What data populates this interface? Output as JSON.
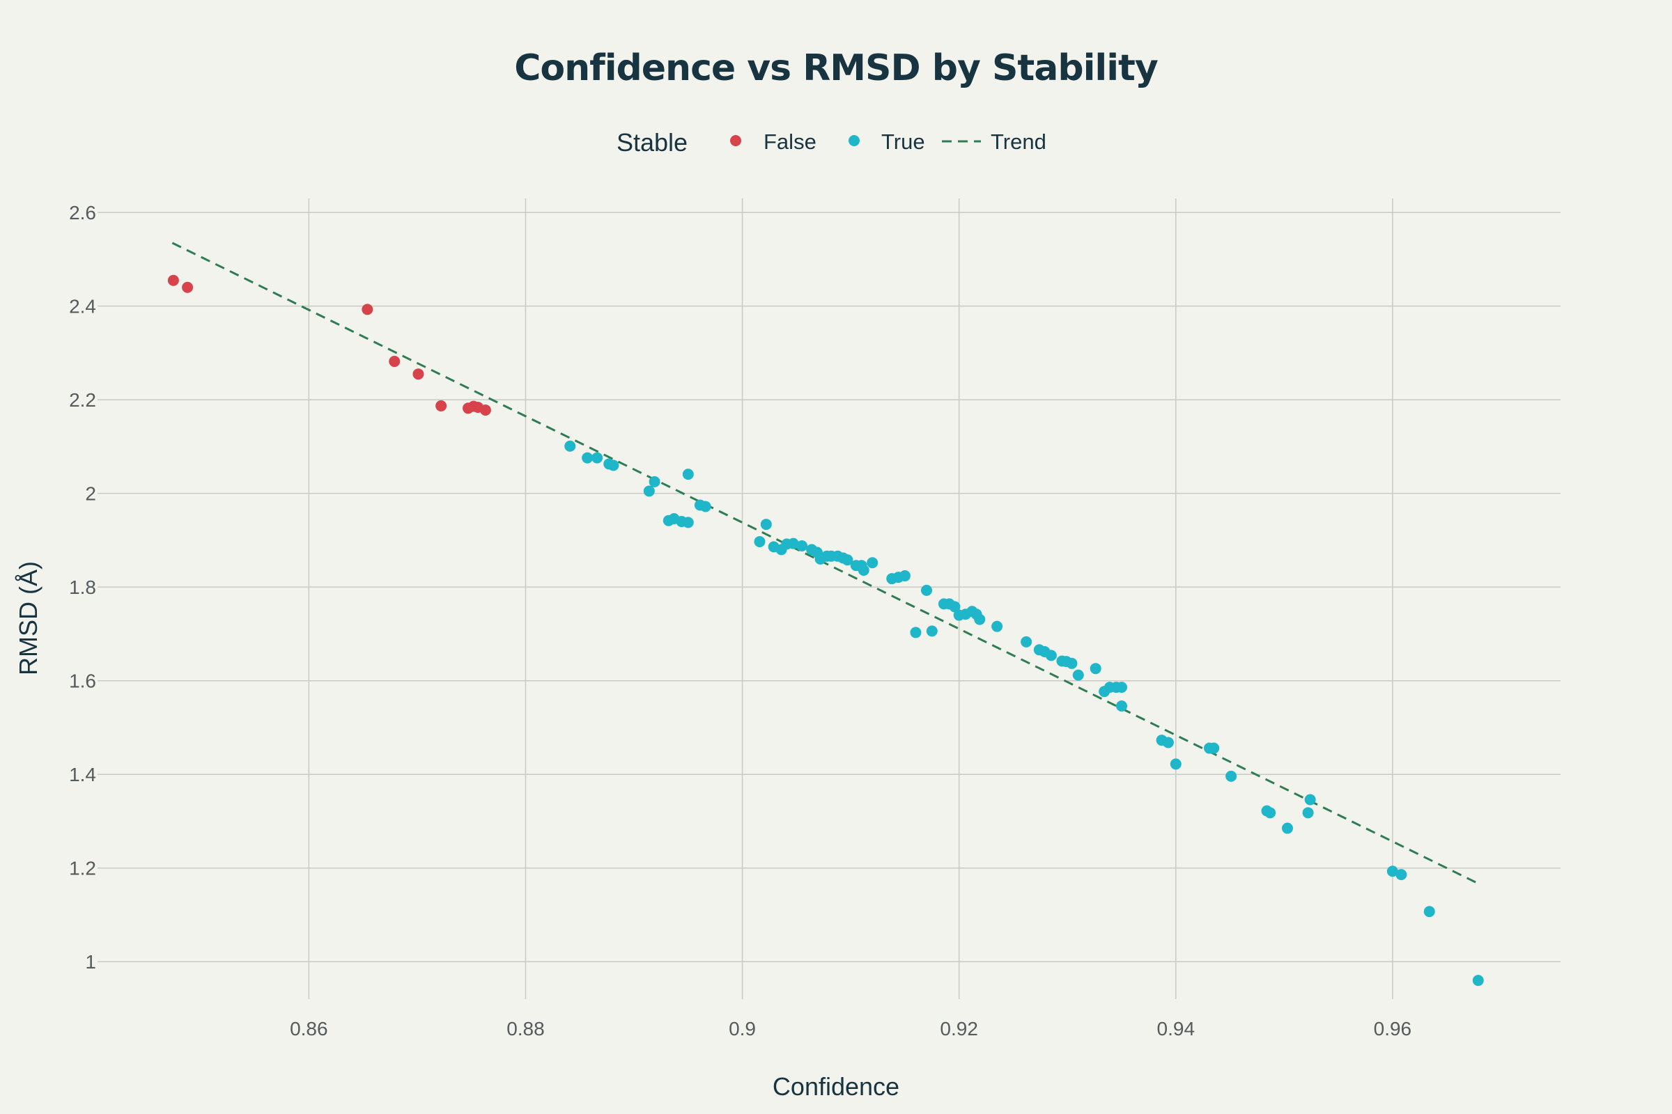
{
  "chart_data": {
    "type": "scatter",
    "title": "Confidence vs RMSD by Stability",
    "xlabel": "Confidence",
    "ylabel": "RMSD (Å)",
    "xlim": [
      0.8405,
      0.9755
    ],
    "ylim": [
      0.92,
      2.63
    ],
    "grid": true,
    "legend_position": "top-center",
    "legend_title": "Stable",
    "x_ticks": [
      "0.86",
      "0.88",
      "0.9",
      "0.92",
      "0.94",
      "0.96"
    ],
    "y_ticks": [
      "1",
      "1.2",
      "1.4",
      "1.6",
      "1.8",
      "2",
      "2.2",
      "2.4",
      "2.6"
    ],
    "x_tick_values": [
      0.86,
      0.88,
      0.9,
      0.92,
      0.94,
      0.96
    ],
    "y_tick_values": [
      1.0,
      1.2,
      1.4,
      1.6,
      1.8,
      2.0,
      2.2,
      2.4,
      2.6
    ],
    "colors": {
      "false": "#d6434b",
      "true": "#1fb6c9",
      "trend": "#2e7d52"
    },
    "series": [
      {
        "name": "False",
        "points": [
          [
            0.8475,
            2.455
          ],
          [
            0.8488,
            2.44
          ],
          [
            0.8654,
            2.393
          ],
          [
            0.8679,
            2.282
          ],
          [
            0.8701,
            2.255
          ],
          [
            0.8722,
            2.187
          ],
          [
            0.8747,
            2.182
          ],
          [
            0.8752,
            2.186
          ],
          [
            0.8756,
            2.184
          ],
          [
            0.8763,
            2.178
          ]
        ]
      },
      {
        "name": "True",
        "points": [
          [
            0.8841,
            2.101
          ],
          [
            0.8857,
            2.076
          ],
          [
            0.8866,
            2.076
          ],
          [
            0.8877,
            2.063
          ],
          [
            0.8881,
            2.06
          ],
          [
            0.8914,
            2.005
          ],
          [
            0.8919,
            2.025
          ],
          [
            0.895,
            2.041
          ],
          [
            0.8932,
            1.942
          ],
          [
            0.8937,
            1.946
          ],
          [
            0.8944,
            1.94
          ],
          [
            0.895,
            1.938
          ],
          [
            0.8961,
            1.975
          ],
          [
            0.8966,
            1.972
          ],
          [
            0.9016,
            1.897
          ],
          [
            0.9022,
            1.934
          ],
          [
            0.9029,
            1.886
          ],
          [
            0.9036,
            1.88
          ],
          [
            0.9041,
            1.892
          ],
          [
            0.9047,
            1.893
          ],
          [
            0.9055,
            1.888
          ],
          [
            0.9064,
            1.88
          ],
          [
            0.9069,
            1.874
          ],
          [
            0.9072,
            1.86
          ],
          [
            0.9078,
            1.866
          ],
          [
            0.9082,
            1.866
          ],
          [
            0.9088,
            1.866
          ],
          [
            0.9093,
            1.862
          ],
          [
            0.9097,
            1.858
          ],
          [
            0.9105,
            1.846
          ],
          [
            0.911,
            1.846
          ],
          [
            0.9112,
            1.836
          ],
          [
            0.912,
            1.852
          ],
          [
            0.9138,
            1.818
          ],
          [
            0.9144,
            1.821
          ],
          [
            0.915,
            1.824
          ],
          [
            0.917,
            1.793
          ],
          [
            0.9186,
            1.764
          ],
          [
            0.9191,
            1.764
          ],
          [
            0.9196,
            1.758
          ],
          [
            0.92,
            1.74
          ],
          [
            0.9206,
            1.742
          ],
          [
            0.9212,
            1.748
          ],
          [
            0.9216,
            1.742
          ],
          [
            0.9219,
            1.731
          ],
          [
            0.916,
            1.703
          ],
          [
            0.9175,
            1.706
          ],
          [
            0.9235,
            1.716
          ],
          [
            0.9262,
            1.683
          ],
          [
            0.9274,
            1.666
          ],
          [
            0.9279,
            1.662
          ],
          [
            0.9285,
            1.654
          ],
          [
            0.9295,
            1.642
          ],
          [
            0.9299,
            1.641
          ],
          [
            0.9304,
            1.637
          ],
          [
            0.931,
            1.612
          ],
          [
            0.9326,
            1.626
          ],
          [
            0.9334,
            1.577
          ],
          [
            0.9339,
            1.586
          ],
          [
            0.9345,
            1.586
          ],
          [
            0.935,
            1.586
          ],
          [
            0.935,
            1.546
          ],
          [
            0.9387,
            1.473
          ],
          [
            0.9393,
            1.468
          ],
          [
            0.94,
            1.422
          ],
          [
            0.9431,
            1.456
          ],
          [
            0.9435,
            1.456
          ],
          [
            0.9451,
            1.396
          ],
          [
            0.9484,
            1.322
          ],
          [
            0.9487,
            1.318
          ],
          [
            0.9503,
            1.285
          ],
          [
            0.9522,
            1.318
          ],
          [
            0.9524,
            1.346
          ],
          [
            0.96,
            1.193
          ],
          [
            0.9608,
            1.186
          ],
          [
            0.9634,
            1.107
          ],
          [
            0.9679,
            0.96
          ]
        ]
      }
    ],
    "trend": {
      "name": "Trend",
      "points": [
        [
          0.8474,
          2.535
        ],
        [
          0.9679,
          1.167
        ]
      ]
    }
  }
}
